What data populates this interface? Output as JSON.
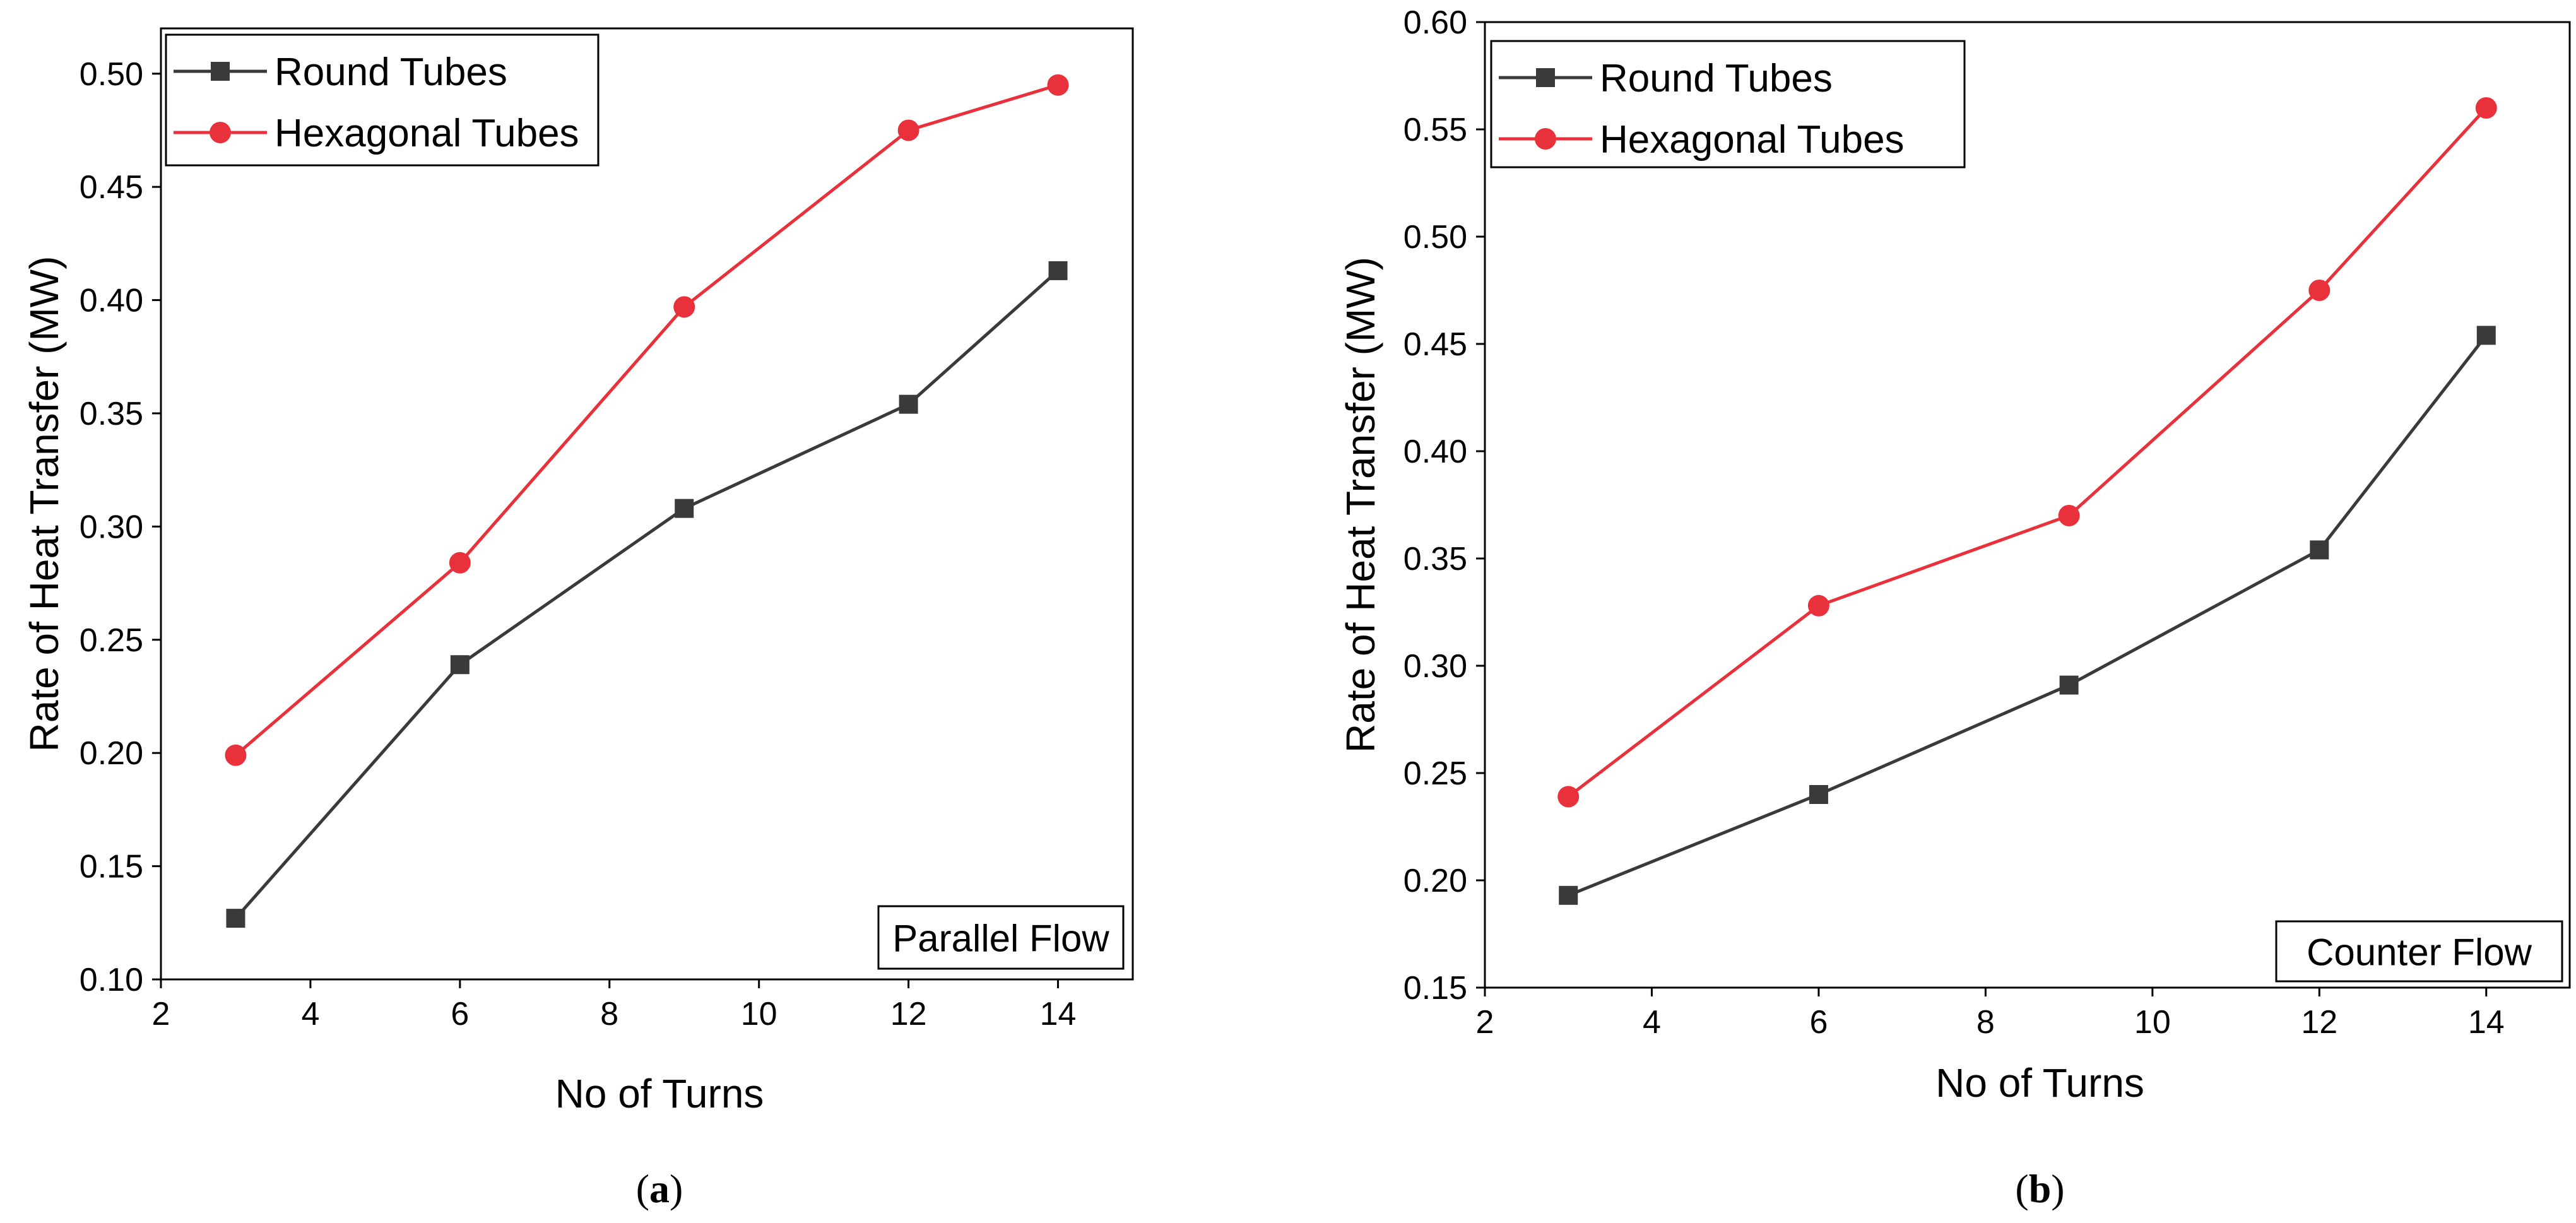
{
  "colors": {
    "round": "#3a3a3a",
    "hexagonal": "#e8313a",
    "axis": "#000000",
    "background": "#ffffff"
  },
  "chart_data": [
    {
      "type": "line",
      "panel_label": "a",
      "inset_label": "Parallel Flow",
      "xlabel": "No of Turns",
      "ylabel": "Rate of Heat Transfer (MW)",
      "xlim": [
        2,
        15
      ],
      "ylim": [
        0.1,
        0.52
      ],
      "xticks": [
        2,
        4,
        6,
        8,
        10,
        12,
        14
      ],
      "yticks": [
        0.1,
        0.15,
        0.2,
        0.25,
        0.3,
        0.35,
        0.4,
        0.45,
        0.5
      ],
      "x": [
        3,
        6,
        9,
        12,
        14
      ],
      "series": [
        {
          "name": "Round Tubes",
          "marker": "square",
          "color": "#3a3a3a",
          "values": [
            0.127,
            0.239,
            0.308,
            0.354,
            0.413
          ]
        },
        {
          "name": "Hexagonal Tubes",
          "marker": "circle",
          "color": "#e8313a",
          "values": [
            0.199,
            0.284,
            0.397,
            0.475,
            0.495
          ]
        }
      ],
      "legend": "top-left",
      "grid": false
    },
    {
      "type": "line",
      "panel_label": "b",
      "inset_label": "Counter Flow",
      "xlabel": "No of Turns",
      "ylabel": "Rate of Heat Transfer (MW)",
      "xlim": [
        2,
        15
      ],
      "ylim": [
        0.15,
        0.6
      ],
      "xticks": [
        2,
        4,
        6,
        8,
        10,
        12,
        14
      ],
      "yticks": [
        0.15,
        0.2,
        0.25,
        0.3,
        0.35,
        0.4,
        0.45,
        0.5,
        0.55,
        0.6
      ],
      "x": [
        3,
        6,
        9,
        12,
        14
      ],
      "series": [
        {
          "name": "Round Tubes",
          "marker": "square",
          "color": "#3a3a3a",
          "values": [
            0.193,
            0.24,
            0.291,
            0.354,
            0.454
          ]
        },
        {
          "name": "Hexagonal Tubes",
          "marker": "circle",
          "color": "#e8313a",
          "values": [
            0.239,
            0.328,
            0.37,
            0.475,
            0.56
          ]
        }
      ],
      "legend": "top-left",
      "grid": false
    }
  ]
}
